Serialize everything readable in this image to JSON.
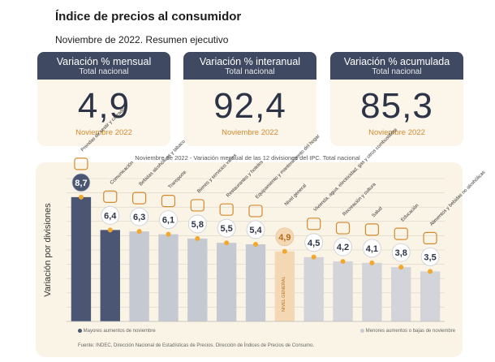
{
  "header": {
    "title": "Índice de precios al consumidor",
    "subtitle": "Noviembre de 2022. Resumen ejecutivo"
  },
  "cards": [
    {
      "title": "Variación % mensual",
      "subtitle": "Total nacional",
      "value": "4,9",
      "date": "Noviembre 2022"
    },
    {
      "title": "Variación % interanual",
      "subtitle": "Total nacional",
      "value": "92,4",
      "date": "Noviembre 2022"
    },
    {
      "title": "Variación % acumulada",
      "subtitle": "Total nacional",
      "value": "85,3",
      "date": "Noviembre 2022"
    }
  ],
  "colors": {
    "card_header": "#3f4961",
    "bar_top": "#4a5672",
    "bar_mid": "#c9ccd4",
    "bar_nivel": "#f3d8b3",
    "dot": "#f2a72e",
    "value_orange": "#d28a2e"
  },
  "chart_data": {
    "type": "bar",
    "title": "Noviembre de 2022 - Variación mensual de las 12 divisiones del IPC. Total nacional",
    "ylabel": "Variación por divisiones",
    "categories": [
      "Prendas de vestir y calzado",
      "Comunicación",
      "Bebidas alcohólicas y tabaco",
      "Transporte",
      "Bienes y servicios varios",
      "Restaurantes y hoteles",
      "Equipamiento y mantenimiento del hogar",
      "Nivel general",
      "Vivienda, agua, electricidad, gas y otros combustibles",
      "Recreación y cultura",
      "Salud",
      "Educación",
      "Alimentos y bebidas no alcohólicas"
    ],
    "values": [
      8.7,
      6.4,
      6.3,
      6.1,
      5.8,
      5.5,
      5.4,
      4.9,
      4.5,
      4.2,
      4.1,
      3.8,
      3.5
    ],
    "value_labels": [
      "8,7",
      "6,4",
      "6,3",
      "6,1",
      "5,8",
      "5,5",
      "5,4",
      "4,9",
      "4,5",
      "4,2",
      "4,1",
      "3,8",
      "3,5"
    ],
    "icons": [
      "clothes-icon",
      "phone-icon",
      "bottle-icon",
      "car-icon",
      "tools-icon",
      "restaurant-icon",
      "hammer-icon",
      "",
      "house-icon",
      "guitar-icon",
      "health-cross-icon",
      "book-icon",
      "food-basket-icon"
    ],
    "bar_label_nivel": "NIVEL GENERAL",
    "ylim": [
      0,
      10
    ],
    "grid": true,
    "legend": [
      {
        "label": "Mayores aumentos de noviembre",
        "color": "#4a5672"
      },
      {
        "label": "Menores aumentos o bajas de noviembre",
        "color": "#c9ccd4"
      }
    ]
  },
  "footer": {
    "source": "Fuente: INDEC, Dirección Nacional de Estadísticas de Precios. Dirección de Índices de Precios de Consumo."
  }
}
